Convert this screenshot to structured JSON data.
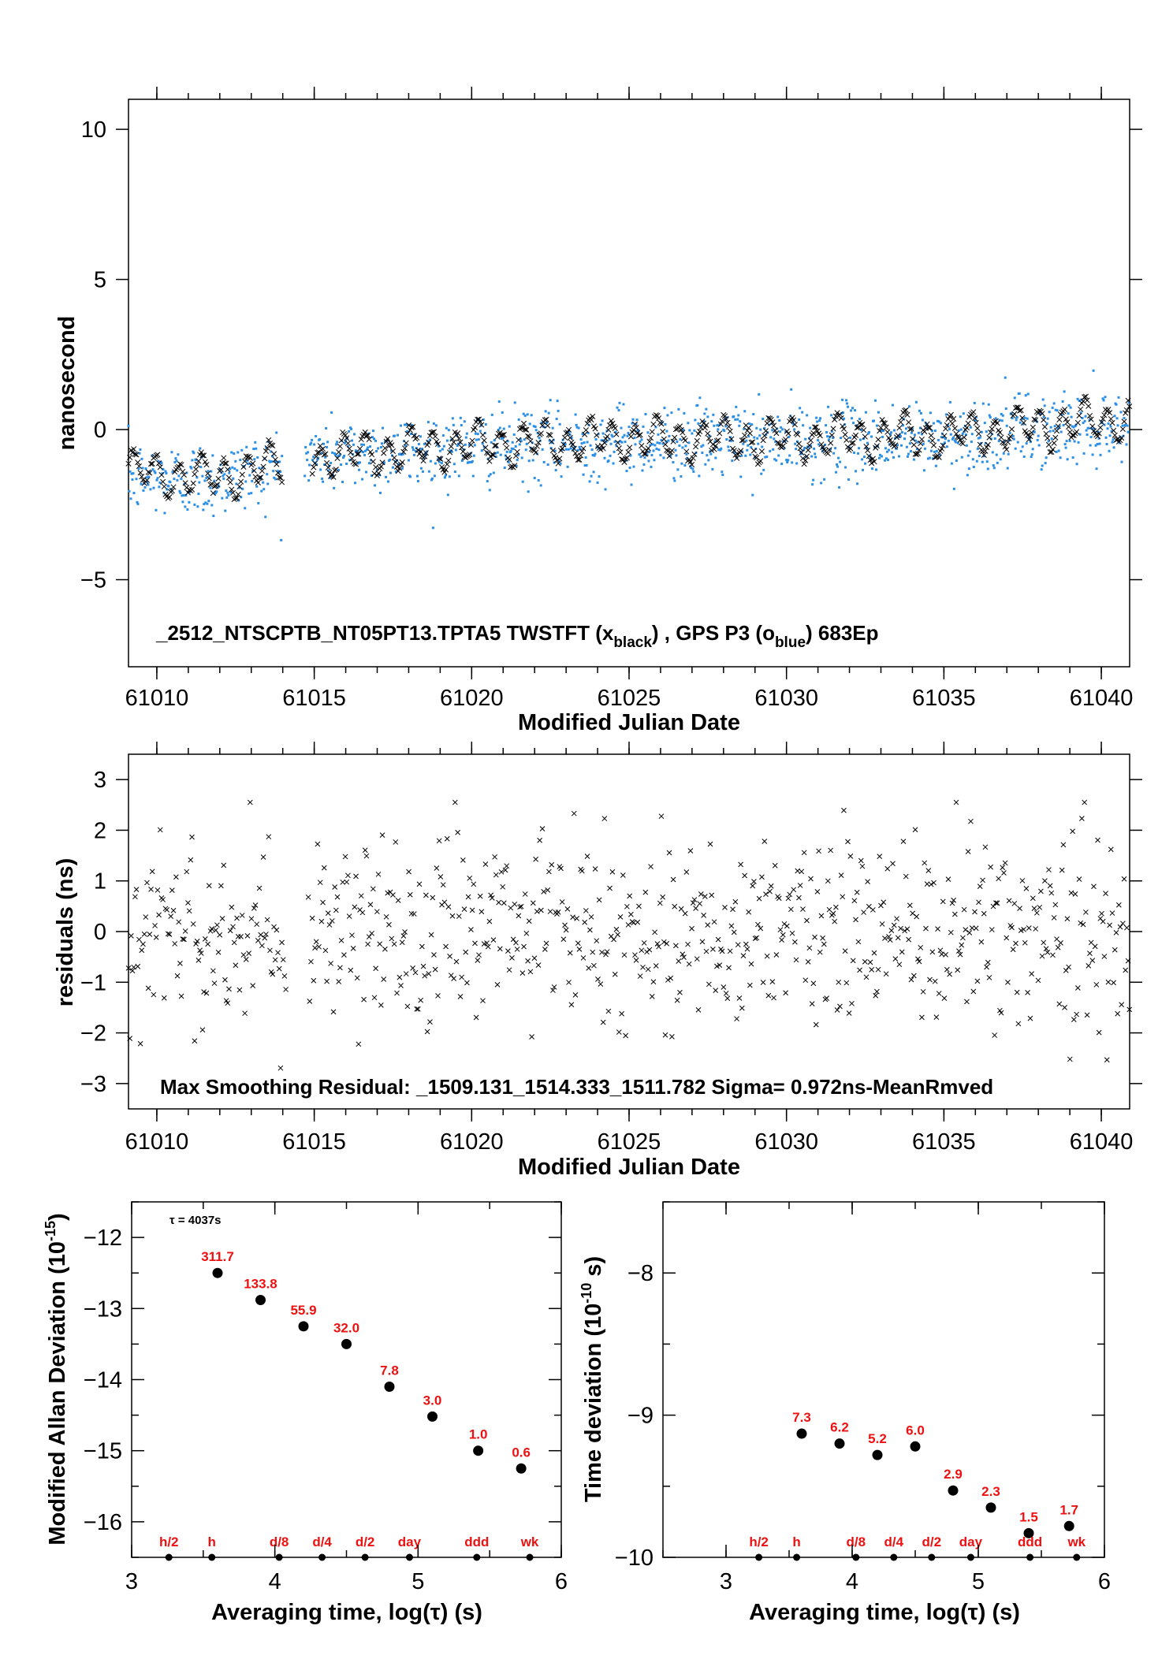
{
  "chart_data": [
    {
      "type": "scatter",
      "title": "_2512_NTSCPTB_NT05PT13.TPTA5     TWSTFT (x",
      "title_sub_black": "black",
      "title_mid": ") ,  GPS P3 (o",
      "title_sub_blue": "blue",
      "title_end": ")  683Ep",
      "xlabel": "Modified Julian Date",
      "ylabel": "nanosecond",
      "xlim": [
        61009.1,
        61040.9
      ],
      "ylim": [
        -7.9,
        11.0
      ],
      "xticks": [
        "61010",
        "61015",
        "61020",
        "61025",
        "61030",
        "61035",
        "61040"
      ],
      "yticks": [
        "10",
        "5",
        "0",
        "−5"
      ],
      "series": [
        {
          "name": "TWSTFT",
          "marker": "x",
          "color": "#000000",
          "trend": [
            [
              61009.1,
              -1.4
            ],
            [
              61012,
              -1.6
            ],
            [
              61015,
              -0.9
            ],
            [
              61020,
              -0.5
            ],
            [
              61025,
              -0.3
            ],
            [
              61030,
              -0.3
            ],
            [
              61035,
              -0.2
            ],
            [
              61040.9,
              0.4
            ]
          ]
        },
        {
          "name": "GPS P3",
          "marker": "dot",
          "color": "#2b8fe6",
          "trend": [
            [
              61009.1,
              -1.6
            ],
            [
              61012,
              -1.7
            ],
            [
              61015,
              -0.9
            ],
            [
              61020,
              -0.6
            ],
            [
              61025,
              -0.4
            ],
            [
              61030,
              -0.4
            ],
            [
              61035,
              -0.3
            ],
            [
              61040.9,
              0.2
            ]
          ]
        }
      ]
    },
    {
      "type": "scatter",
      "annotation": "Max Smoothing Residual: _1509.131_1514.333_1511.782  Sigma= 0.972ns-MeanRmved",
      "xlabel": "Modified Julian Date",
      "ylabel": "residuals (ns)",
      "xlim": [
        61009.1,
        61040.9
      ],
      "ylim": [
        -3.5,
        3.5
      ],
      "xticks": [
        "61010",
        "61015",
        "61020",
        "61025",
        "61030",
        "61035",
        "61040"
      ],
      "yticks": [
        "3",
        "2",
        "1",
        "0",
        "−1",
        "−2",
        "−3"
      ],
      "series": [
        {
          "marker": "x",
          "color": "#000000",
          "sigma": 0.972
        }
      ]
    },
    {
      "type": "scatter",
      "annotation": "τ = 4037s",
      "xlabel": "Averaging time, log(τ) (s)",
      "ylabel_main": "Modified Allan Deviation (10",
      "ylabel_sup": "-15",
      "ylabel_end": ")",
      "xlim": [
        3,
        6
      ],
      "ylim": [
        -16.5,
        -11.5
      ],
      "xticks": [
        "3",
        "4",
        "5",
        "6"
      ],
      "yticks": [
        "−12",
        "−13",
        "−14",
        "−15",
        "−16"
      ],
      "points": [
        {
          "x": 3.6,
          "y": -12.5,
          "label": "311.7"
        },
        {
          "x": 3.9,
          "y": -12.88,
          "label": "133.8"
        },
        {
          "x": 4.2,
          "y": -13.25,
          "label": "55.9"
        },
        {
          "x": 4.5,
          "y": -13.5,
          "label": "32.0"
        },
        {
          "x": 4.8,
          "y": -14.1,
          "label": "7.8"
        },
        {
          "x": 5.1,
          "y": -14.52,
          "label": "3.0"
        },
        {
          "x": 5.42,
          "y": -15.0,
          "label": "1.0"
        },
        {
          "x": 5.72,
          "y": -15.25,
          "label": "0.6"
        }
      ],
      "markers": [
        {
          "x": 3.26,
          "label": "h/2"
        },
        {
          "x": 3.56,
          "label": "h"
        },
        {
          "x": 4.03,
          "label": "d/8"
        },
        {
          "x": 4.33,
          "label": "d/4"
        },
        {
          "x": 4.63,
          "label": "d/2"
        },
        {
          "x": 4.94,
          "label": "day"
        },
        {
          "x": 5.41,
          "label": "ddd"
        },
        {
          "x": 5.78,
          "label": "wk"
        }
      ]
    },
    {
      "type": "scatter",
      "xlabel": "Averaging time, log(τ) (s)",
      "ylabel_main": "Time deviation (10",
      "ylabel_sup": "-10",
      "ylabel_end": " s)",
      "xlim": [
        2.5,
        6.0
      ],
      "ylim": [
        -10.0,
        -7.5
      ],
      "xticks": [
        "3",
        "4",
        "5",
        "6"
      ],
      "yticks": [
        "−8",
        "−9",
        "−10"
      ],
      "points": [
        {
          "x": 3.6,
          "y": -9.13,
          "label": "7.3"
        },
        {
          "x": 3.9,
          "y": -9.2,
          "label": "6.2"
        },
        {
          "x": 4.2,
          "y": -9.28,
          "label": "5.2"
        },
        {
          "x": 4.5,
          "y": -9.22,
          "label": "6.0"
        },
        {
          "x": 4.8,
          "y": -9.53,
          "label": "2.9"
        },
        {
          "x": 5.1,
          "y": -9.65,
          "label": "2.3"
        },
        {
          "x": 5.4,
          "y": -9.83,
          "label": "1.5"
        },
        {
          "x": 5.72,
          "y": -9.78,
          "label": "1.7"
        }
      ],
      "markers": [
        {
          "x": 3.26,
          "label": "h/2"
        },
        {
          "x": 3.56,
          "label": "h"
        },
        {
          "x": 4.03,
          "label": "d/8"
        },
        {
          "x": 4.33,
          "label": "d/4"
        },
        {
          "x": 4.63,
          "label": "d/2"
        },
        {
          "x": 4.94,
          "label": "day"
        },
        {
          "x": 5.41,
          "label": "ddd"
        },
        {
          "x": 5.78,
          "label": "wk"
        }
      ]
    }
  ]
}
